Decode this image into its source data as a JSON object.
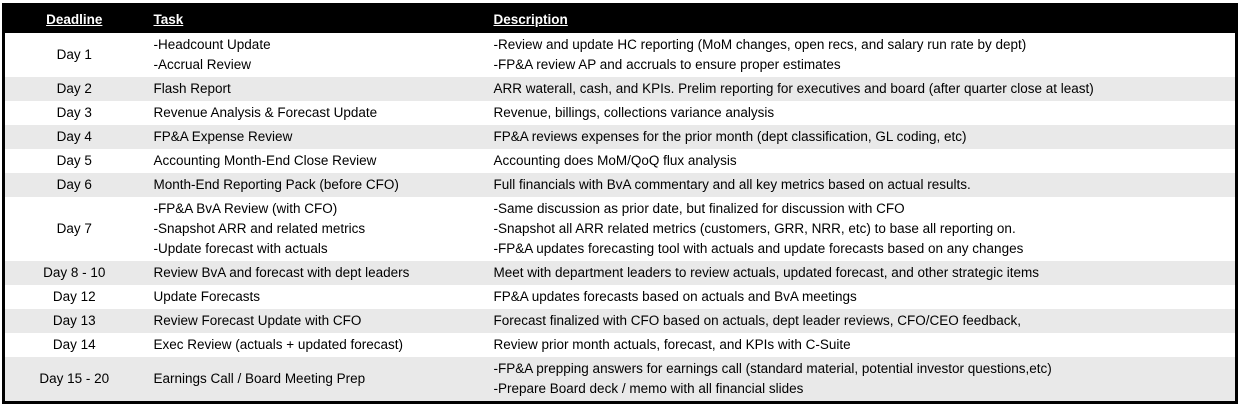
{
  "colors": {
    "header_bg": "#000000",
    "header_text": "#ffffff",
    "row_bg": "#ffffff",
    "row_alt_bg": "#e9e9e9",
    "body_text": "#000000",
    "border": "#000000"
  },
  "table": {
    "columns": [
      {
        "label": "Deadline"
      },
      {
        "label": "Task"
      },
      {
        "label": "Description"
      }
    ],
    "rows": [
      {
        "deadline": "Day 1",
        "task": "-Headcount Update\n-Accrual Review",
        "description": "-Review and update HC reporting (MoM changes, open recs, and salary run rate by dept)\n-FP&A review AP and accruals to ensure proper estimates"
      },
      {
        "deadline": "Day 2",
        "task": "Flash Report",
        "description": "ARR waterall, cash, and KPIs. Prelim reporting for executives and board (after quarter close at least)"
      },
      {
        "deadline": "Day 3",
        "task": "Revenue Analysis & Forecast Update",
        "description": "Revenue, billings, collections variance analysis"
      },
      {
        "deadline": "Day 4",
        "task": "FP&A Expense Review",
        "description": "FP&A reviews expenses for the prior month (dept classification, GL coding, etc)"
      },
      {
        "deadline": "Day 5",
        "task": "Accounting Month-End Close Review",
        "description": "Accounting does MoM/QoQ flux analysis"
      },
      {
        "deadline": "Day 6",
        "task": "Month-End Reporting Pack (before CFO)",
        "description": "Full financials with BvA commentary and all key metrics based on actual results."
      },
      {
        "deadline": "Day 7",
        "task": "-FP&A BvA Review (with CFO)\n-Snapshot ARR and related metrics\n-Update forecast with actuals",
        "description": "-Same discussion as prior date, but finalized for discussion with CFO\n-Snapshot all ARR related metrics (customers, GRR, NRR, etc) to base all reporting on.\n-FP&A updates forecasting tool with actuals and update forecasts based on any changes"
      },
      {
        "deadline": "Day 8 - 10",
        "task": "Review BvA and forecast with dept leaders",
        "description": "Meet with department leaders to review actuals, updated forecast, and other strategic items"
      },
      {
        "deadline": "Day 12",
        "task": "Update Forecasts",
        "description": "FP&A updates forecasts based on actuals and BvA meetings"
      },
      {
        "deadline": "Day 13",
        "task": "Review Forecast Update with CFO",
        "description": "Forecast finalized with CFO based on actuals, dept leader reviews, CFO/CEO feedback,"
      },
      {
        "deadline": "Day 14",
        "task": "Exec Review (actuals + updated forecast)",
        "description": "Review prior month actuals, forecast, and KPIs with C-Suite"
      },
      {
        "deadline": "Day 15 - 20",
        "task": "Earnings Call / Board Meeting Prep",
        "description": "-FP&A prepping answers for earnings call (standard material, potential investor questions,etc)\n-Prepare Board deck / memo with all financial slides"
      }
    ]
  }
}
